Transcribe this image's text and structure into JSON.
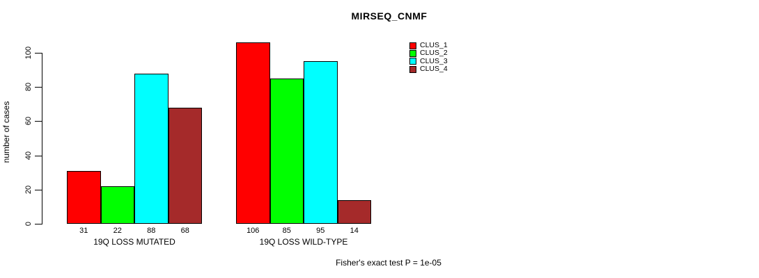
{
  "chart_data": {
    "type": "bar",
    "title": "MIRSEQ_CNMF",
    "xlabel": "",
    "ylabel": "number of cases",
    "ylim": [
      0,
      100
    ],
    "yticks": [
      0,
      20,
      40,
      60,
      80,
      100
    ],
    "grid": false,
    "legend_position": "right-of-plot",
    "show_values_under_bars": true,
    "categories": [
      "19Q LOSS MUTATED",
      "19Q LOSS WILD-TYPE"
    ],
    "series": [
      {
        "name": "CLUS_1",
        "color": "#FF0000",
        "values": [
          31,
          106
        ]
      },
      {
        "name": "CLUS_2",
        "color": "#00FF00",
        "values": [
          22,
          85
        ]
      },
      {
        "name": "CLUS_3",
        "color": "#00FFFF",
        "values": [
          88,
          95
        ]
      },
      {
        "name": "CLUS_4",
        "color": "#A52A2A",
        "values": [
          68,
          14
        ]
      }
    ],
    "annotation": "Fisher's exact test P = 1e-05"
  }
}
